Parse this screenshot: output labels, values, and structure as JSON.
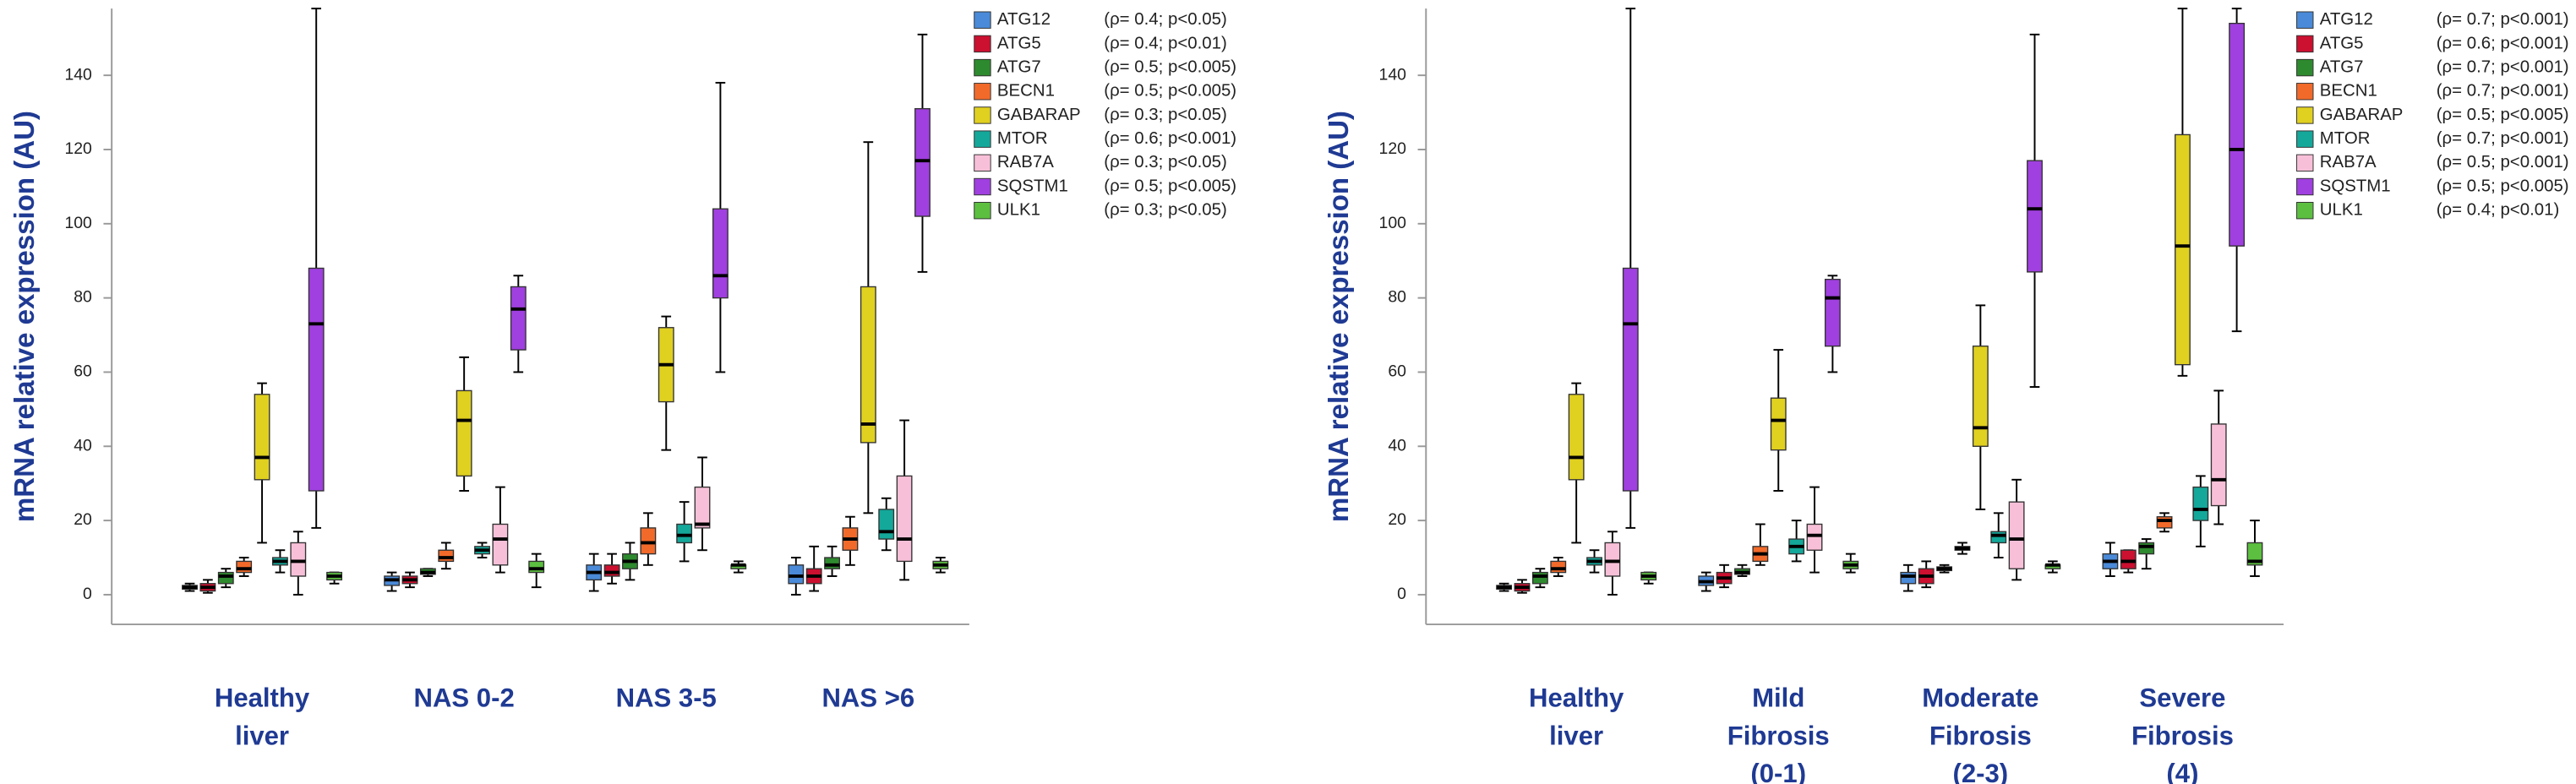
{
  "chart_data": [
    {
      "type": "box",
      "ylabel": "mRNA relative expression (AU)",
      "ylim": [
        -8,
        158
      ],
      "yticks": [
        0,
        20,
        40,
        60,
        80,
        100,
        120,
        140
      ],
      "categories": [
        [
          "Healthy",
          "liver"
        ],
        [
          "NAS 0-2"
        ],
        [
          "NAS 3-5"
        ],
        [
          "NAS >6"
        ]
      ],
      "series": [
        {
          "name": "ATG12",
          "annotation": "(ρ= 0.4; p<0.05)",
          "color": "#4a8ad8",
          "values": [
            [
              1,
              1.5,
              2,
              2.5,
              3
            ],
            [
              1,
              2.5,
              4,
              5,
              6
            ],
            [
              1,
              4,
              6,
              8,
              11
            ],
            [
              0,
              3,
              5,
              8,
              10
            ]
          ]
        },
        {
          "name": "ATG5",
          "annotation": "(ρ= 0.4; p<0.01)",
          "color": "#cc1030",
          "values": [
            [
              0.5,
              1,
              2,
              3,
              4
            ],
            [
              2,
              3,
              4,
              5,
              6
            ],
            [
              3,
              5,
              6,
              8,
              11
            ],
            [
              1,
              3,
              5,
              7,
              13
            ]
          ]
        },
        {
          "name": "ATG7",
          "annotation": "(ρ= 0.5; p<0.005)",
          "color": "#2e8a2e",
          "values": [
            [
              2,
              3,
              5,
              6,
              7
            ],
            [
              5,
              5.5,
              6,
              7,
              7
            ],
            [
              4,
              7,
              9,
              11,
              14
            ],
            [
              5,
              7,
              8,
              10,
              13
            ]
          ]
        },
        {
          "name": "BECN1",
          "annotation": "(ρ= 0.5; p<0.005)",
          "color": "#f26a2a",
          "values": [
            [
              5,
              6,
              7,
              9,
              10
            ],
            [
              7,
              9,
              10,
              12,
              14
            ],
            [
              8,
              11,
              14,
              18,
              22
            ],
            [
              8,
              12,
              15,
              18,
              21
            ]
          ]
        },
        {
          "name": "GABARAP",
          "annotation": "(ρ= 0.3; p<0.05)",
          "color": "#e0d020",
          "values": [
            [
              14,
              31,
              37,
              54,
              57
            ],
            [
              28,
              32,
              47,
              55,
              64
            ],
            [
              39,
              52,
              62,
              72,
              75
            ],
            [
              22,
              41,
              46,
              83,
              122
            ]
          ]
        },
        {
          "name": "MTOR",
          "annotation": "(ρ= 0.6; p<0.001)",
          "color": "#14a89a",
          "values": [
            [
              6,
              8,
              9,
              10,
              12
            ],
            [
              10,
              11,
              12,
              13,
              14
            ],
            [
              9,
              14,
              16,
              19,
              25
            ],
            [
              12,
              15,
              17,
              23,
              26
            ]
          ]
        },
        {
          "name": "RAB7A",
          "annotation": "(ρ= 0.3; p<0.05)",
          "color": "#f8c0d8",
          "values": [
            [
              0,
              5,
              9,
              14,
              17
            ],
            [
              6,
              8,
              15,
              19,
              29
            ],
            [
              12,
              18,
              19,
              29,
              37
            ],
            [
              4,
              9,
              15,
              32,
              47
            ]
          ]
        },
        {
          "name": "SQSTM1",
          "annotation": "(ρ= 0.5; p<0.005)",
          "color": "#a040e0",
          "values": [
            [
              18,
              28,
              73,
              88,
              158
            ],
            [
              60,
              66,
              77,
              83,
              86
            ],
            [
              60,
              80,
              86,
              104,
              138
            ],
            [
              87,
              102,
              117,
              131,
              151
            ]
          ]
        },
        {
          "name": "ULK1",
          "annotation": "(ρ= 0.3; p<0.05)",
          "color": "#5cbf40",
          "values": [
            [
              3,
              4,
              5,
              6,
              6
            ],
            [
              2,
              6,
              7,
              9,
              11
            ],
            [
              6,
              7,
              8,
              8,
              9
            ],
            [
              6,
              7,
              8,
              9,
              10
            ]
          ]
        }
      ]
    },
    {
      "type": "box",
      "ylabel": "mRNA relative expression (AU)",
      "ylim": [
        -8,
        158
      ],
      "yticks": [
        0,
        20,
        40,
        60,
        80,
        100,
        120,
        140
      ],
      "categories": [
        [
          "Healthy",
          "liver"
        ],
        [
          "Mild",
          "Fibrosis",
          "(0-1)"
        ],
        [
          "Moderate",
          "Fibrosis",
          "(2-3)"
        ],
        [
          "Severe",
          "Fibrosis",
          "(4)"
        ]
      ],
      "series": [
        {
          "name": "ATG12",
          "annotation": "(ρ= 0.7; p<0.001)",
          "color": "#4a8ad8",
          "values": [
            [
              1,
              1.5,
              2,
              2.5,
              3
            ],
            [
              1,
              2.5,
              3.5,
              5,
              6
            ],
            [
              1,
              3,
              5,
              6,
              8
            ],
            [
              5,
              7,
              9,
              11,
              14
            ]
          ]
        },
        {
          "name": "ATG5",
          "annotation": "(ρ= 0.6; p<0.001)",
          "color": "#cc1030",
          "values": [
            [
              0.5,
              1,
              2,
              3,
              4
            ],
            [
              2,
              3,
              4.5,
              6,
              8
            ],
            [
              2,
              3,
              5,
              7,
              9
            ],
            [
              6,
              7,
              9,
              12,
              12
            ]
          ]
        },
        {
          "name": "ATG7",
          "annotation": "(ρ= 0.7; p<0.001)",
          "color": "#2e8a2e",
          "values": [
            [
              2,
              3,
              5,
              6,
              7
            ],
            [
              5,
              5.5,
              6,
              7,
              8
            ],
            [
              6,
              6.5,
              7,
              7.5,
              8
            ],
            [
              7,
              11,
              13,
              14,
              15
            ]
          ]
        },
        {
          "name": "BECN1",
          "annotation": "(ρ= 0.7; p<0.001)",
          "color": "#f26a2a",
          "values": [
            [
              5,
              6,
              7,
              9,
              10
            ],
            [
              8,
              9,
              11,
              13,
              19
            ],
            [
              11,
              12,
              12.5,
              13,
              14
            ],
            [
              17,
              18,
              20,
              21,
              22
            ]
          ]
        },
        {
          "name": "GABARAP",
          "annotation": "(ρ= 0.5; p<0.005)",
          "color": "#e0d020",
          "values": [
            [
              14,
              31,
              37,
              54,
              57
            ],
            [
              28,
              39,
              47,
              53,
              66
            ],
            [
              23,
              40,
              45,
              67,
              78
            ],
            [
              59,
              62,
              94,
              124,
              158
            ]
          ]
        },
        {
          "name": "MTOR",
          "annotation": "(ρ= 0.7; p<0.001)",
          "color": "#14a89a",
          "values": [
            [
              6,
              8,
              9,
              10,
              12
            ],
            [
              9,
              11,
              13,
              15,
              20
            ],
            [
              10,
              14,
              16,
              17,
              22
            ],
            [
              13,
              20,
              23,
              29,
              32
            ]
          ]
        },
        {
          "name": "RAB7A",
          "annotation": "(ρ= 0.5; p<0.001)",
          "color": "#f8c0d8",
          "values": [
            [
              0,
              5,
              9,
              14,
              17
            ],
            [
              6,
              12,
              16,
              19,
              29
            ],
            [
              4,
              7,
              15,
              25,
              31
            ],
            [
              19,
              24,
              31,
              46,
              55
            ]
          ]
        },
        {
          "name": "SQSTM1",
          "annotation": "(ρ= 0.5; p<0.005)",
          "color": "#a040e0",
          "values": [
            [
              18,
              28,
              73,
              88,
              158
            ],
            [
              60,
              67,
              80,
              85,
              86
            ],
            [
              56,
              87,
              104,
              117,
              151
            ],
            [
              71,
              94,
              120,
              154,
              158
            ]
          ]
        },
        {
          "name": "ULK1",
          "annotation": "(ρ= 0.4; p<0.01)",
          "color": "#5cbf40",
          "values": [
            [
              3,
              4,
              5,
              6,
              6
            ],
            [
              6,
              7,
              8,
              9,
              11
            ],
            [
              6,
              7,
              8,
              8,
              9
            ],
            [
              5,
              8,
              9,
              14,
              20
            ]
          ]
        }
      ]
    }
  ]
}
